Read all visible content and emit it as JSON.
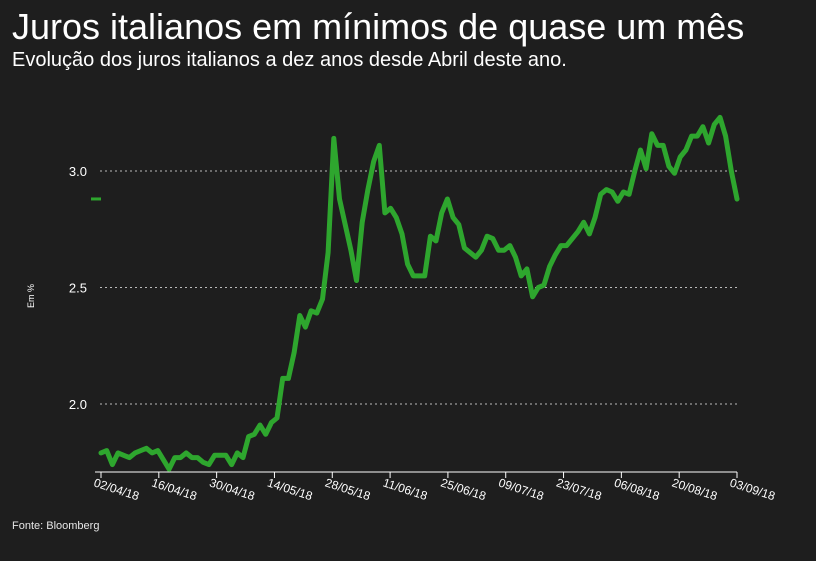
{
  "header": {
    "title": "Juros italianos em mínimos de quase um mês",
    "subtitle": "Evolução dos juros italianos a dez anos desde Abril deste ano."
  },
  "footer": {
    "source": "Fonte: Bloomberg"
  },
  "colors": {
    "background": "#1e1e1e",
    "line": "#2ea62e",
    "text": "#ffffff",
    "grid": "#bbbbbb"
  },
  "chart_data": {
    "type": "line",
    "title": "",
    "xlabel": "",
    "ylabel": "Em %",
    "ylim": [
      1.75,
      3.3
    ],
    "yticks": [
      2.0,
      2.5,
      3.0
    ],
    "ytick_labels": [
      "2.0",
      "2.5",
      "3.0"
    ],
    "grid": "horizontal dotted",
    "xticks": [
      "02/04/18",
      "16/04/18",
      "30/04/18",
      "14/05/18",
      "28/05/18",
      "11/06/18",
      "25/06/18",
      "09/07/18",
      "23/07/18",
      "06/08/18",
      "20/08/18",
      "03/09/18"
    ],
    "last_value_marker": 2.88,
    "series": [
      {
        "name": "",
        "values": [
          1.79,
          1.8,
          1.74,
          1.79,
          1.78,
          1.77,
          1.79,
          1.8,
          1.81,
          1.79,
          1.8,
          1.76,
          1.72,
          1.77,
          1.77,
          1.79,
          1.77,
          1.77,
          1.75,
          1.74,
          1.78,
          1.78,
          1.78,
          1.74,
          1.79,
          1.77,
          1.86,
          1.87,
          1.91,
          1.87,
          1.92,
          1.94,
          2.11,
          2.11,
          2.22,
          2.38,
          2.33,
          2.4,
          2.39,
          2.45,
          2.65,
          3.14,
          2.88,
          2.77,
          2.66,
          2.53,
          2.78,
          2.92,
          3.04,
          3.11,
          2.82,
          2.84,
          2.8,
          2.73,
          2.6,
          2.55,
          2.55,
          2.55,
          2.72,
          2.7,
          2.82,
          2.88,
          2.8,
          2.77,
          2.67,
          2.65,
          2.63,
          2.66,
          2.72,
          2.71,
          2.66,
          2.66,
          2.68,
          2.63,
          2.55,
          2.58,
          2.46,
          2.5,
          2.51,
          2.59,
          2.64,
          2.68,
          2.68,
          2.71,
          2.74,
          2.78,
          2.73,
          2.8,
          2.9,
          2.92,
          2.91,
          2.87,
          2.91,
          2.9,
          3.0,
          3.09,
          3.01,
          3.16,
          3.11,
          3.11,
          3.02,
          2.99,
          3.06,
          3.09,
          3.15,
          3.15,
          3.19,
          3.12,
          3.2,
          3.23,
          3.15,
          3.0,
          2.88
        ]
      }
    ]
  }
}
